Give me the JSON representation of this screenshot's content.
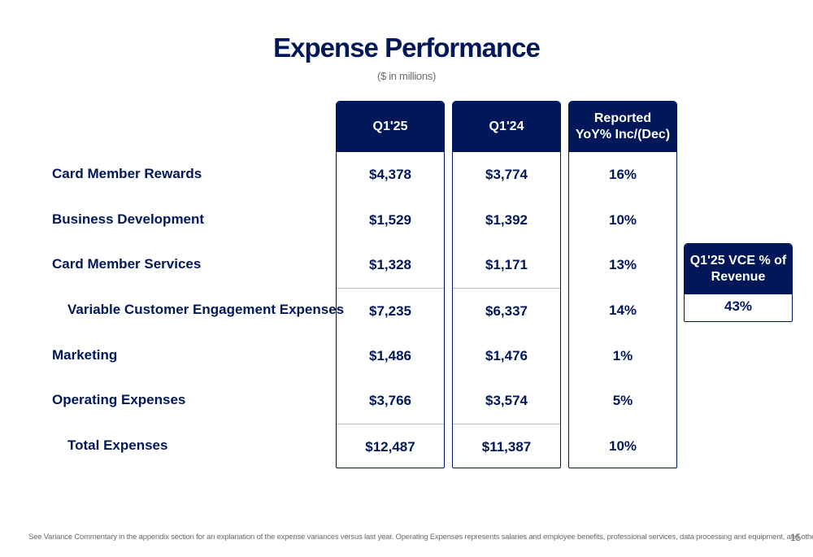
{
  "title": "Expense Performance",
  "subtitle": "($ in millions)",
  "rows": [
    {
      "label": "Card Member Rewards"
    },
    {
      "label": "Business Development"
    },
    {
      "label": "Card Member Services"
    },
    {
      "label": "Variable Customer Engagement Expenses"
    },
    {
      "label": "Marketing"
    },
    {
      "label": "Operating Expenses"
    },
    {
      "label": "Total Expenses"
    }
  ],
  "columns": [
    {
      "header": [
        "Q1'25"
      ],
      "values": [
        "$4,378",
        "$1,529",
        "$1,328",
        "$7,235",
        "$1,486",
        "$3,766",
        "$12,487"
      ]
    },
    {
      "header": [
        "Q1'24"
      ],
      "values": [
        "$3,774",
        "$1,392",
        "$1,171",
        "$6,337",
        "$1,476",
        "$3,574",
        "$11,387"
      ]
    },
    {
      "header": [
        "Reported",
        "YoY% Inc/(Dec)"
      ],
      "values": [
        "16%",
        "10%",
        "13%",
        "14%",
        "1%",
        "5%",
        "10%"
      ]
    }
  ],
  "side_box": {
    "header": [
      "Q1'25 VCE % of",
      "Revenue"
    ],
    "value": "43%"
  },
  "footnote": "See Variance Commentary in the appendix section for an explanation of the expense variances versus last year. Operating Expenses represents salaries and employee benefits, professional services, data processing and equipment, and other, net.",
  "page_number": "15",
  "colors": {
    "navy": "#00175a",
    "white": "#ffffff",
    "rule": "#b9b9b9",
    "muted": "#6b6b6b"
  }
}
